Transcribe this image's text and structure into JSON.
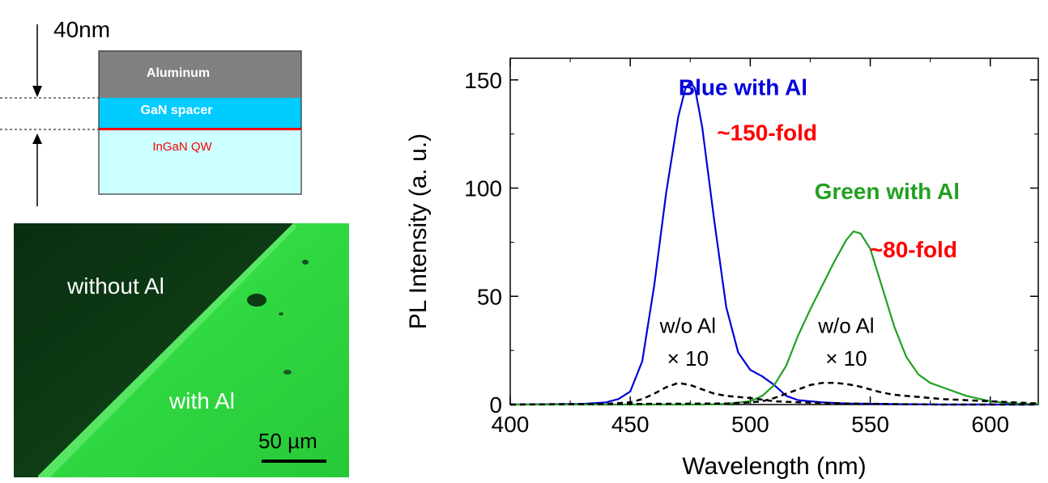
{
  "schematic": {
    "thickness_label": "40nm",
    "layers": [
      {
        "name": "Aluminum",
        "color": "#808080",
        "text_color": "#ffffff"
      },
      {
        "name": "GaN spacer",
        "color": "#00ccff",
        "text_color": "#ffffff"
      },
      {
        "name": "InGaN QW",
        "color": "#ff0000",
        "text_color": "#ff0000"
      },
      {
        "name": "",
        "color": "#ccffff"
      }
    ]
  },
  "micrograph": {
    "region_without": "without Al",
    "region_with": "with Al",
    "scale_bar": "50 µm",
    "colors": {
      "dark": "#0b3d14",
      "bright": "#33dd44"
    }
  },
  "chart_data": {
    "type": "line",
    "xlabel": "Wavelength (nm)",
    "ylabel": "PL Intensity (a. u.)",
    "xlim": [
      400,
      620
    ],
    "ylim": [
      0,
      160
    ],
    "xticks": [
      400,
      450,
      500,
      550,
      600
    ],
    "yticks": [
      0,
      50,
      100,
      150
    ],
    "grid": false,
    "legend": "none",
    "series": [
      {
        "name": "Blue with Al",
        "color": "#0000dd",
        "style": "solid",
        "x": [
          400,
          430,
          440,
          445,
          450,
          455,
          460,
          465,
          470,
          473,
          475,
          477,
          480,
          485,
          490,
          495,
          500,
          505,
          510,
          515,
          520,
          530,
          540,
          560,
          580,
          600,
          620
        ],
        "y": [
          0,
          0.3,
          1,
          2.5,
          6,
          20,
          55,
          98,
          133,
          146,
          149,
          146,
          128,
          85,
          45,
          24,
          16,
          13,
          9,
          4,
          2,
          1,
          0.5,
          0.2,
          0,
          0,
          0
        ]
      },
      {
        "name": "Green with Al",
        "color": "#22a022",
        "style": "solid",
        "x": [
          400,
          480,
          490,
          500,
          505,
          510,
          515,
          520,
          525,
          530,
          535,
          540,
          543,
          546,
          550,
          555,
          560,
          565,
          570,
          575,
          580,
          590,
          600,
          610,
          620
        ],
        "y": [
          0,
          0,
          0.3,
          1.5,
          4,
          9,
          18,
          32,
          44,
          55,
          66,
          76,
          80,
          79,
          72,
          54,
          36,
          22,
          14,
          10,
          8,
          4,
          1.5,
          0.5,
          0.2
        ]
      },
      {
        "name": "w/o Al × 10 (blue)",
        "color": "#000000",
        "style": "dashed",
        "x": [
          400,
          440,
          450,
          455,
          460,
          465,
          470,
          475,
          480,
          485,
          490,
          500,
          510,
          520,
          540,
          560,
          580,
          600,
          620
        ],
        "y": [
          0,
          0.3,
          1,
          2.5,
          5,
          8,
          10,
          9,
          7,
          5,
          4,
          3,
          1.5,
          1,
          0.5,
          0.2,
          0,
          0,
          0
        ]
      },
      {
        "name": "w/o Al × 10 (green)",
        "color": "#000000",
        "style": "dashed",
        "x": [
          400,
          490,
          500,
          505,
          510,
          515,
          520,
          525,
          530,
          535,
          540,
          545,
          550,
          555,
          560,
          570,
          580,
          590,
          600,
          620
        ],
        "y": [
          0,
          0.5,
          1,
          1.5,
          3,
          5,
          7,
          9,
          10,
          10,
          9.5,
          8.5,
          7,
          5.5,
          4.5,
          3.5,
          2.5,
          2,
          1.5,
          0.5
        ]
      }
    ],
    "annotations": [
      {
        "text": "Blue with Al",
        "color": "#0000dd",
        "x": 497,
        "y": 143
      },
      {
        "text": "~150-fold",
        "color": "#ff0000",
        "x": 507,
        "y": 122
      },
      {
        "text": "Green with Al",
        "color": "#22a022",
        "x": 557,
        "y": 95
      },
      {
        "text": "~80-fold",
        "color": "#ff0000",
        "x": 568,
        "y": 68
      },
      {
        "text": "w/o Al",
        "color": "#000000",
        "x": 474,
        "y": 33
      },
      {
        "text": "× 10",
        "color": "#000000",
        "x": 474,
        "y": 18
      },
      {
        "text": "w/o Al",
        "color": "#000000",
        "x": 540,
        "y": 33
      },
      {
        "text": "× 10",
        "color": "#000000",
        "x": 540,
        "y": 18
      }
    ]
  }
}
